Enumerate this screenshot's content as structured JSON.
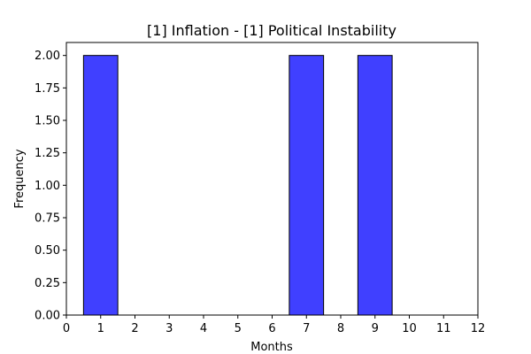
{
  "chart_data": {
    "type": "bar",
    "title": "[1] Inflation - [1] Political Instability",
    "xlabel": "Months",
    "ylabel": "Frequency",
    "xlim": [
      0,
      12
    ],
    "ylim": [
      0,
      2.1
    ],
    "x_ticks": [
      "0",
      "1",
      "2",
      "3",
      "4",
      "5",
      "6",
      "7",
      "8",
      "9",
      "10",
      "11",
      "12"
    ],
    "y_ticks": [
      "0.00",
      "0.25",
      "0.50",
      "0.75",
      "1.00",
      "1.25",
      "1.50",
      "1.75",
      "2.00"
    ],
    "bars": [
      {
        "x": 1,
        "value": 2.0
      },
      {
        "x": 7,
        "value": 2.0
      },
      {
        "x": 9,
        "value": 2.0
      }
    ],
    "bar_color": "#4040ff",
    "bar_edge_color": "#000000",
    "grid": false
  }
}
